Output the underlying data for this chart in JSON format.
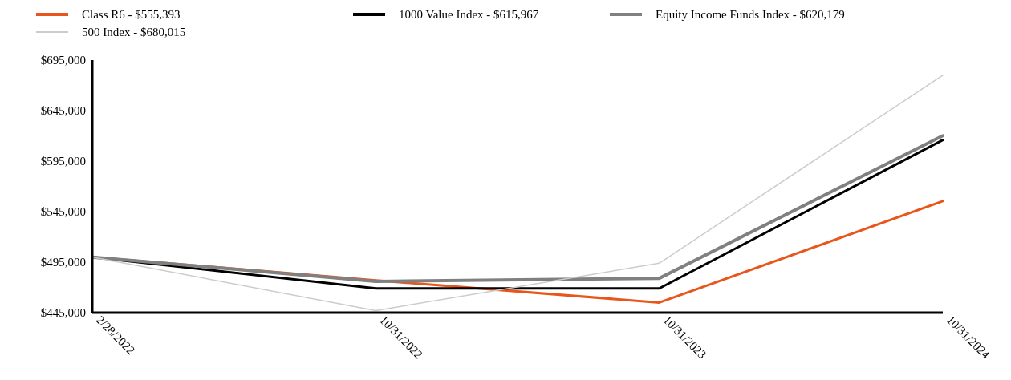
{
  "chart_data": {
    "type": "line",
    "categories": [
      "2/28/2022",
      "10/31/2022",
      "10/31/2023",
      "10/31/2024"
    ],
    "series": [
      {
        "name": "Class R6 - $555,393",
        "color": "#e8561b",
        "values": [
          500000,
          477000,
          455000,
          555393
        ]
      },
      {
        "name": "1000 Value Index - $615,967",
        "color": "#000000",
        "values": [
          500000,
          469000,
          469000,
          615967
        ]
      },
      {
        "name": "Equity Income Funds Index - $620,179",
        "color": "#808080",
        "values": [
          500000,
          476000,
          479000,
          620179
        ]
      },
      {
        "name": "500 Index - $680,015",
        "color": "#cccccc",
        "values": [
          500000,
          447000,
          494000,
          680015
        ]
      }
    ],
    "ylim": [
      445000,
      695000
    ],
    "yticks": [
      {
        "value": 445000,
        "label": "$445,000"
      },
      {
        "value": 495000,
        "label": "$495,000"
      },
      {
        "value": 545000,
        "label": "$545,000"
      },
      {
        "value": 595000,
        "label": "$595,000"
      },
      {
        "value": 645000,
        "label": "$645,000"
      },
      {
        "value": 695000,
        "label": "$695,000"
      }
    ],
    "grid": false,
    "legend": "top left",
    "line_style": "solid"
  }
}
